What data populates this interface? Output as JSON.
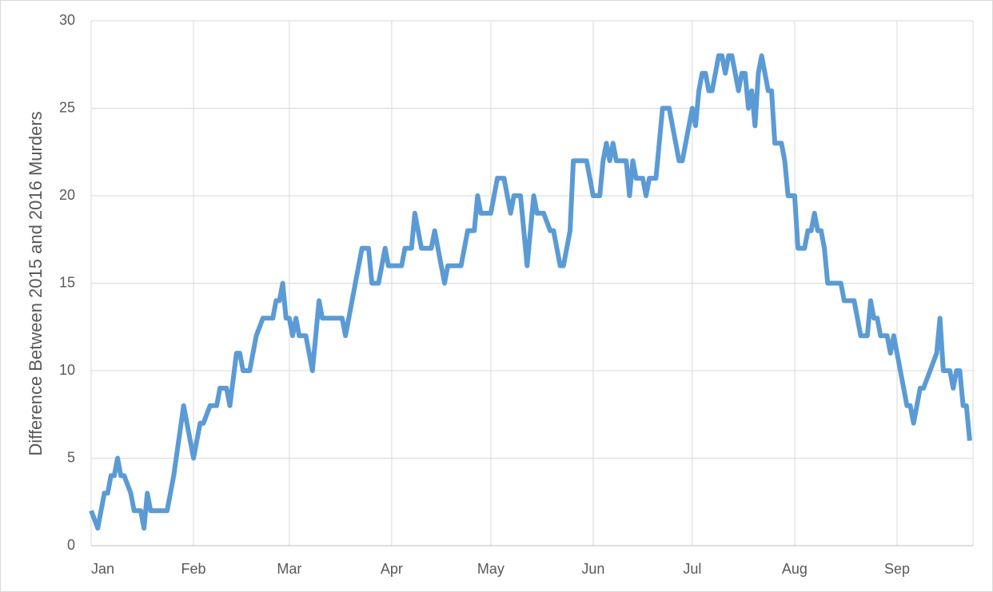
{
  "chart_data": {
    "type": "line",
    "y_label": "Difference Between 2015 and 2016 Murders",
    "xlim": [
      0,
      267
    ],
    "xticks": [
      {
        "value": 0,
        "label": "Jan"
      },
      {
        "value": 31,
        "label": "Feb"
      },
      {
        "value": 60,
        "label": "Mar"
      },
      {
        "value": 91,
        "label": "Apr"
      },
      {
        "value": 121,
        "label": "May"
      },
      {
        "value": 152,
        "label": "Jun"
      },
      {
        "value": 182,
        "label": "Jul"
      },
      {
        "value": 213,
        "label": "Aug"
      },
      {
        "value": 244,
        "label": "Sep"
      }
    ],
    "ylim": [
      0,
      30
    ],
    "yticks": [
      0,
      5,
      10,
      15,
      20,
      25,
      30
    ],
    "grid": true,
    "x": [
      0,
      2,
      4,
      5,
      6,
      7,
      8,
      9,
      10,
      12,
      13,
      15,
      16,
      17,
      18,
      23,
      25,
      28,
      30,
      31,
      33,
      34,
      36,
      38,
      39,
      41,
      42,
      44,
      45,
      46,
      48,
      49,
      50,
      52,
      55,
      56,
      57,
      58,
      59,
      60,
      61,
      62,
      63,
      65,
      67,
      69,
      70,
      76,
      77,
      80,
      82,
      84,
      85,
      87,
      89,
      90,
      94,
      95,
      97,
      98,
      100,
      103,
      104,
      106,
      107,
      108,
      112,
      114,
      116,
      117,
      118,
      121,
      122,
      123,
      125,
      127,
      128,
      130,
      131,
      132,
      134,
      135,
      137,
      139,
      140,
      142,
      143,
      145,
      146,
      150,
      152,
      154,
      155,
      156,
      157,
      158,
      159,
      162,
      163,
      164,
      165,
      167,
      168,
      169,
      171,
      173,
      175,
      177,
      178,
      179,
      181,
      182,
      183,
      184,
      185,
      186,
      187,
      188,
      189,
      190,
      191,
      192,
      193,
      194,
      195,
      196,
      197,
      198,
      199,
      200,
      201,
      202,
      203,
      204,
      205,
      206,
      207,
      209,
      210,
      211,
      213,
      214,
      216,
      217,
      218,
      219,
      220,
      221,
      222,
      223,
      227,
      228,
      231,
      233,
      235,
      236,
      237,
      238,
      239,
      241,
      242,
      243,
      244,
      245,
      247,
      248,
      249,
      250,
      251,
      252,
      254,
      256,
      257,
      258,
      260,
      261,
      262,
      263,
      264,
      265,
      266
    ],
    "series": [
      {
        "color": "#5b9bd5",
        "values": [
          2,
          1,
          3,
          3,
          4,
          4,
          5,
          4,
          4,
          3,
          2,
          2,
          1,
          3,
          2,
          2,
          4,
          8,
          6,
          5,
          7,
          7,
          8,
          8,
          9,
          9,
          8,
          11,
          11,
          10,
          10,
          11,
          12,
          13,
          13,
          14,
          14,
          15,
          13,
          13,
          12,
          13,
          12,
          12,
          10,
          14,
          13,
          13,
          12,
          15,
          17,
          17,
          15,
          15,
          17,
          16,
          16,
          17,
          17,
          19,
          17,
          17,
          18,
          16,
          15,
          16,
          16,
          18,
          18,
          20,
          19,
          19,
          20,
          21,
          21,
          19,
          20,
          20,
          18,
          16,
          20,
          19,
          19,
          18,
          18,
          16,
          16,
          18,
          22,
          22,
          20,
          20,
          22,
          23,
          22,
          23,
          22,
          22,
          20,
          22,
          21,
          21,
          20,
          21,
          21,
          25,
          25,
          23,
          22,
          22,
          24,
          25,
          24,
          26,
          27,
          27,
          26,
          26,
          27,
          28,
          28,
          27,
          28,
          28,
          27,
          26,
          27,
          27,
          25,
          26,
          24,
          27,
          28,
          27,
          26,
          26,
          23,
          23,
          22,
          20,
          20,
          17,
          17,
          18,
          18,
          19,
          18,
          18,
          17,
          15,
          15,
          14,
          14,
          12,
          12,
          14,
          13,
          13,
          12,
          12,
          11,
          12,
          11,
          10,
          8,
          8,
          7,
          8,
          9,
          9,
          10,
          11,
          13,
          10,
          10,
          9,
          10,
          10,
          8,
          8,
          6
        ]
      }
    ]
  }
}
